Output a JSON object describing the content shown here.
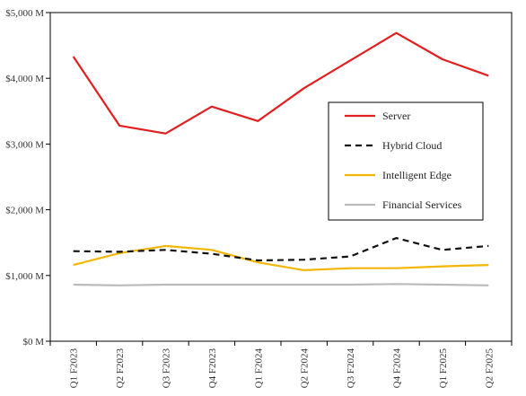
{
  "chart_data": {
    "type": "line",
    "title": "",
    "xlabel": "",
    "ylabel": "",
    "ylim": [
      0,
      5000
    ],
    "yticks": [
      {
        "value": 0,
        "label": "$0 M"
      },
      {
        "value": 1000,
        "label": "$1,000 M"
      },
      {
        "value": 2000,
        "label": "$2,000 M"
      },
      {
        "value": 3000,
        "label": "$3,000 M"
      },
      {
        "value": 4000,
        "label": "$4,000 M"
      },
      {
        "value": 5000,
        "label": "$5,000 M"
      }
    ],
    "categories": [
      "Q1 F2023",
      "Q2 F2023",
      "Q3 F2023",
      "Q4 F2023",
      "Q1 F2024",
      "Q2 F2024",
      "Q3 F2024",
      "Q4 F2024",
      "Q1 F2025",
      "Q2 F2025"
    ],
    "grid": false,
    "legend_position": "right",
    "series": [
      {
        "name": "Server",
        "color": "#e02020",
        "dash": "solid",
        "values": [
          4330,
          3280,
          3160,
          3570,
          3350,
          3850,
          4270,
          4690,
          4290,
          4040
        ]
      },
      {
        "name": "Hybrid Cloud",
        "color": "#111111",
        "dash": "dashed",
        "values": [
          1370,
          1360,
          1390,
          1330,
          1230,
          1240,
          1290,
          1570,
          1390,
          1450
        ]
      },
      {
        "name": "Intelligent Edge",
        "color": "#f2b705",
        "dash": "solid",
        "values": [
          1160,
          1340,
          1450,
          1390,
          1200,
          1080,
          1110,
          1110,
          1140,
          1160
        ]
      },
      {
        "name": "Financial Services",
        "color": "#bbbbbb",
        "dash": "solid",
        "values": [
          860,
          850,
          860,
          860,
          860,
          860,
          860,
          870,
          860,
          850
        ]
      }
    ]
  }
}
